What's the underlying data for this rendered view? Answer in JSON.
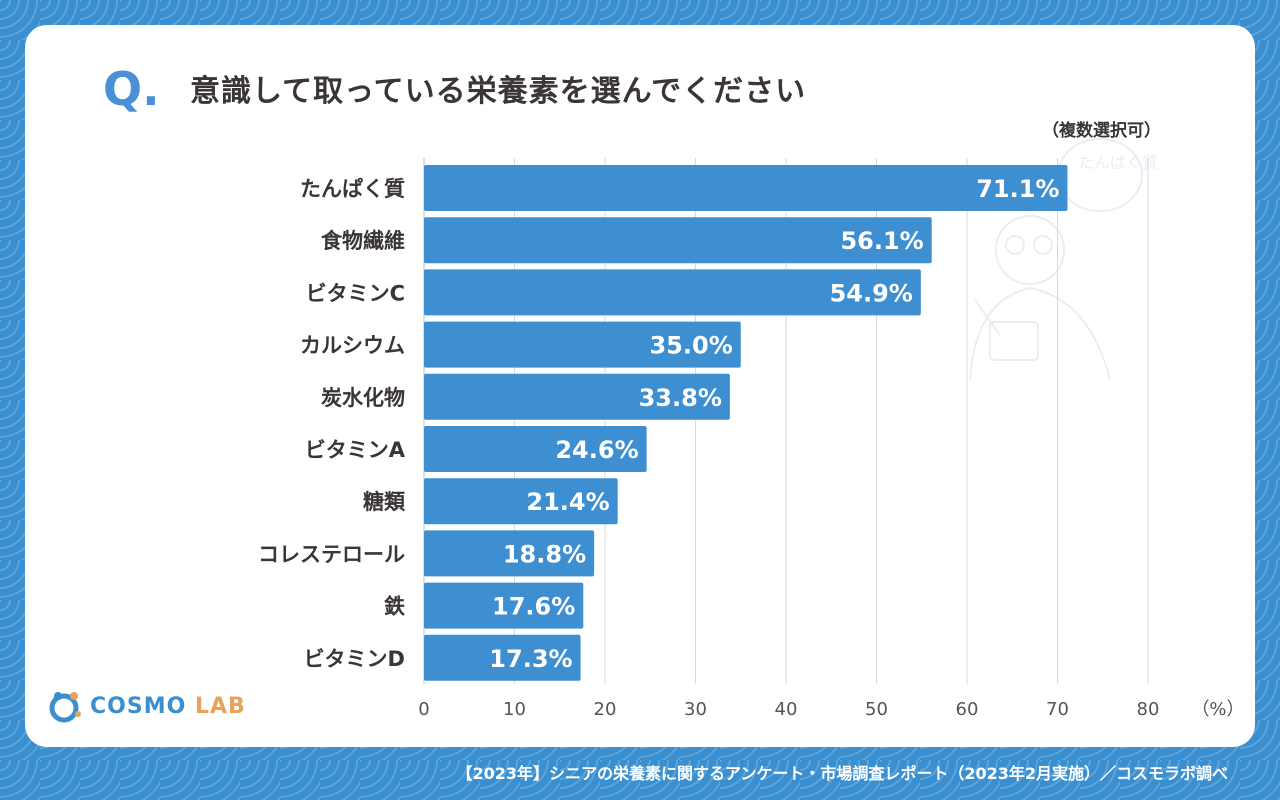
{
  "question": {
    "mark": "Q.",
    "text": "意識して取っている栄養素を選んでください"
  },
  "note": "（複数選択可）",
  "unit": "（%）",
  "footer": "【2023年】シニアの栄養素に関するアンケート・市場調査レポート（2023年2月実施）／コスモラボ調べ",
  "logo": {
    "text1": "COSMO",
    "text2": "LAB"
  },
  "illustration": {
    "text": "たんぱく質"
  },
  "colors": {
    "bar": "#3d8fd1",
    "frame": "#3a8fd0",
    "text": "#3b3535",
    "grid": "#d9d9d9"
  },
  "chart_data": {
    "type": "bar",
    "orientation": "horizontal",
    "categories": [
      "たんぱく質",
      "食物繊維",
      "ビタミンC",
      "カルシウム",
      "炭水化物",
      "ビタミンA",
      "糖類",
      "コレステロール",
      "鉄",
      "ビタミンD"
    ],
    "values": [
      71.1,
      56.1,
      54.9,
      35.0,
      33.8,
      24.6,
      21.4,
      18.8,
      17.6,
      17.3
    ],
    "value_labels": [
      "71.1%",
      "56.1%",
      "54.9%",
      "35.0%",
      "33.8%",
      "24.6%",
      "21.4%",
      "18.8%",
      "17.6%",
      "17.3%"
    ],
    "xlim": [
      0,
      80
    ],
    "xticks": [
      "0",
      "10",
      "20",
      "30",
      "40",
      "50",
      "60",
      "70",
      "80"
    ],
    "grid": true
  }
}
